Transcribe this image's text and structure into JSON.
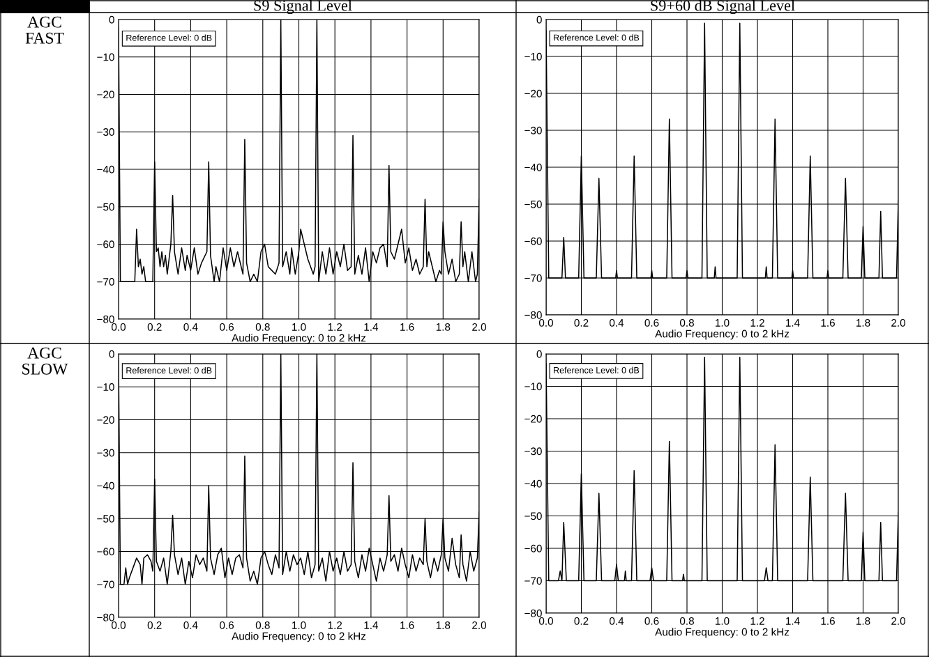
{
  "chart_data": [
    {
      "type": "line",
      "title": "S9 Signal Level",
      "xlabel": "Audio Frequency: 0 to 2 kHz",
      "annotations": [
        "Reference Level: 0 dB",
        "AGC FAST"
      ],
      "xlim": [
        0,
        2
      ],
      "ylim": [
        -80,
        0
      ],
      "xticks": [
        {
          "value": 0,
          "label": "0.0"
        },
        {
          "value": 0.2,
          "label": "0.2"
        },
        {
          "value": 0.4,
          "label": "0.4"
        },
        {
          "value": 0.6,
          "label": "0.6"
        },
        {
          "value": 0.8,
          "label": "0.8"
        },
        {
          "value": 1,
          "label": "1.0"
        },
        {
          "value": 1.2,
          "label": "1.2"
        },
        {
          "value": 1.4,
          "label": "1.4"
        },
        {
          "value": 1.6,
          "label": "1.6"
        },
        {
          "value": 1.8,
          "label": "1.8"
        },
        {
          "value": 2,
          "label": "2.0"
        }
      ],
      "yticks": [
        -80,
        -70,
        -60,
        -50,
        -40,
        -30,
        -20,
        -10,
        0
      ],
      "grid": true,
      "legend": false,
      "series": [
        {
          "color": "#000000",
          "x": [
            0.0,
            0.01,
            0.09,
            0.1,
            0.11,
            0.12,
            0.13,
            0.14,
            0.15,
            0.19,
            0.2,
            0.21,
            0.22,
            0.23,
            0.24,
            0.25,
            0.26,
            0.27,
            0.29,
            0.3,
            0.31,
            0.33,
            0.35,
            0.37,
            0.38,
            0.4,
            0.42,
            0.44,
            0.46,
            0.49,
            0.5,
            0.51,
            0.53,
            0.54,
            0.56,
            0.58,
            0.6,
            0.62,
            0.64,
            0.66,
            0.69,
            0.7,
            0.71,
            0.73,
            0.75,
            0.77,
            0.79,
            0.81,
            0.83,
            0.85,
            0.87,
            0.89,
            0.9,
            0.91,
            0.93,
            0.95,
            0.96,
            0.98,
            1.0,
            1.01,
            1.03,
            1.05,
            1.08,
            1.09,
            1.1,
            1.11,
            1.13,
            1.15,
            1.17,
            1.19,
            1.21,
            1.23,
            1.25,
            1.27,
            1.29,
            1.3,
            1.31,
            1.33,
            1.35,
            1.37,
            1.39,
            1.41,
            1.43,
            1.45,
            1.47,
            1.49,
            1.5,
            1.51,
            1.53,
            1.55,
            1.57,
            1.59,
            1.61,
            1.63,
            1.65,
            1.67,
            1.69,
            1.7,
            1.71,
            1.72,
            1.74,
            1.76,
            1.78,
            1.79,
            1.8,
            1.81,
            1.83,
            1.85,
            1.87,
            1.89,
            1.9,
            1.91,
            1.92,
            1.94,
            1.96,
            1.98,
            1.99,
            2.0
          ],
          "values": [
            -2,
            -70,
            -70,
            -56,
            -66,
            -64,
            -68,
            -66,
            -70,
            -70,
            -38,
            -62,
            -61,
            -66,
            -62,
            -66,
            -63,
            -68,
            -60,
            -47,
            -62,
            -68,
            -61,
            -67,
            -63,
            -67,
            -61,
            -68,
            -65,
            -62,
            -38,
            -63,
            -70,
            -66,
            -70,
            -61,
            -67,
            -61,
            -66,
            -62,
            -68,
            -32,
            -65,
            -70,
            -68,
            -70,
            -62,
            -60,
            -66,
            -67,
            -68,
            -65,
            0,
            -66,
            -62,
            -68,
            -61,
            -68,
            -62,
            -56,
            -60,
            -64,
            -68,
            -66,
            0,
            -70,
            -62,
            -68,
            -61,
            -68,
            -62,
            -66,
            -60,
            -67,
            -66,
            -31,
            -68,
            -63,
            -68,
            -61,
            -70,
            -62,
            -65,
            -61,
            -60,
            -66,
            -39,
            -62,
            -64,
            -60,
            -56,
            -65,
            -61,
            -67,
            -64,
            -68,
            -66,
            -48,
            -66,
            -62,
            -66,
            -70,
            -67,
            -68,
            -54,
            -62,
            -68,
            -64,
            -70,
            -68,
            -54,
            -66,
            -62,
            -70,
            -62,
            -70,
            -68,
            -48
          ]
        }
      ]
    },
    {
      "type": "line",
      "title": "S9+60 dB Signal Level",
      "xlabel": "Audio Frequency: 0 to 2 kHz",
      "annotations": [
        "Reference Level: 0 dB"
      ],
      "xlim": [
        0,
        2
      ],
      "ylim": [
        -80,
        0
      ],
      "xticks": [
        {
          "value": 0,
          "label": "0.0"
        },
        {
          "value": 0.2,
          "label": "0.2"
        },
        {
          "value": 0.4,
          "label": "0.4"
        },
        {
          "value": 0.6,
          "label": "0.6"
        },
        {
          "value": 0.8,
          "label": "0.8"
        },
        {
          "value": 1,
          "label": "1.0"
        },
        {
          "value": 1.2,
          "label": "1.2"
        },
        {
          "value": 1.4,
          "label": "1.4"
        },
        {
          "value": 1.6,
          "label": "1.6"
        },
        {
          "value": 1.8,
          "label": "1.8"
        },
        {
          "value": 2,
          "label": "2.0"
        }
      ],
      "yticks": [
        -80,
        -70,
        -60,
        -50,
        -40,
        -30,
        -20,
        -10,
        0
      ],
      "grid": true,
      "legend": false,
      "series": [
        {
          "color": "#000000",
          "x": [
            0.0,
            0.015,
            0.09,
            0.1,
            0.11,
            0.185,
            0.2,
            0.215,
            0.285,
            0.3,
            0.315,
            0.395,
            0.4,
            0.405,
            0.485,
            0.5,
            0.515,
            0.595,
            0.6,
            0.605,
            0.685,
            0.7,
            0.715,
            0.795,
            0.8,
            0.805,
            0.885,
            0.9,
            0.915,
            0.955,
            0.96,
            0.965,
            1.085,
            1.1,
            1.115,
            1.245,
            1.25,
            1.255,
            1.285,
            1.3,
            1.315,
            1.395,
            1.4,
            1.405,
            1.485,
            1.5,
            1.515,
            1.595,
            1.6,
            1.605,
            1.685,
            1.7,
            1.715,
            1.79,
            1.8,
            1.81,
            1.89,
            1.9,
            1.91,
            1.99,
            2.0
          ],
          "values": [
            -3,
            -70,
            -70,
            -59,
            -70,
            -70,
            -37,
            -70,
            -70,
            -43,
            -70,
            -70,
            -68,
            -70,
            -70,
            -37,
            -70,
            -70,
            -68,
            -70,
            -70,
            -27,
            -70,
            -70,
            -68,
            -70,
            -70,
            -1,
            -70,
            -70,
            -67,
            -70,
            -70,
            -1,
            -70,
            -70,
            -67,
            -70,
            -70,
            -27,
            -70,
            -70,
            -68,
            -70,
            -70,
            -37,
            -70,
            -70,
            -68,
            -70,
            -70,
            -43,
            -70,
            -70,
            -56,
            -70,
            -70,
            -52,
            -70,
            -70,
            -49
          ]
        }
      ]
    },
    {
      "type": "line",
      "xlabel": "Audio Frequency: 0 to 2 kHz",
      "annotations": [
        "Reference Level: 0 dB",
        "AGC SLOW"
      ],
      "xlim": [
        0,
        2
      ],
      "ylim": [
        -80,
        0
      ],
      "xticks": [
        {
          "value": 0,
          "label": "0.0"
        },
        {
          "value": 0.2,
          "label": "0.2"
        },
        {
          "value": 0.4,
          "label": "0.4"
        },
        {
          "value": 0.6,
          "label": "0.6"
        },
        {
          "value": 0.8,
          "label": "0.8"
        },
        {
          "value": 1,
          "label": "1.0"
        },
        {
          "value": 1.2,
          "label": "1.2"
        },
        {
          "value": 1.4,
          "label": "1.4"
        },
        {
          "value": 1.6,
          "label": "1.6"
        },
        {
          "value": 1.8,
          "label": "1.8"
        },
        {
          "value": 2,
          "label": "2.0"
        }
      ],
      "yticks": [
        -80,
        -70,
        -60,
        -50,
        -40,
        -30,
        -20,
        -10,
        0
      ],
      "grid": true,
      "legend": false,
      "series": [
        {
          "color": "#000000",
          "x": [
            0.0,
            0.01,
            0.03,
            0.04,
            0.05,
            0.06,
            0.08,
            0.1,
            0.12,
            0.13,
            0.14,
            0.16,
            0.18,
            0.19,
            0.2,
            0.21,
            0.23,
            0.25,
            0.27,
            0.29,
            0.3,
            0.31,
            0.33,
            0.35,
            0.37,
            0.39,
            0.41,
            0.43,
            0.45,
            0.47,
            0.49,
            0.5,
            0.51,
            0.53,
            0.55,
            0.57,
            0.59,
            0.61,
            0.63,
            0.65,
            0.67,
            0.69,
            0.7,
            0.71,
            0.73,
            0.75,
            0.77,
            0.79,
            0.81,
            0.83,
            0.85,
            0.87,
            0.89,
            0.9,
            0.91,
            0.93,
            0.95,
            0.97,
            0.99,
            1.01,
            1.03,
            1.05,
            1.07,
            1.09,
            1.1,
            1.11,
            1.13,
            1.15,
            1.17,
            1.19,
            1.21,
            1.23,
            1.25,
            1.27,
            1.29,
            1.3,
            1.31,
            1.33,
            1.35,
            1.37,
            1.39,
            1.41,
            1.43,
            1.45,
            1.47,
            1.49,
            1.5,
            1.51,
            1.53,
            1.55,
            1.57,
            1.59,
            1.61,
            1.63,
            1.65,
            1.67,
            1.69,
            1.7,
            1.71,
            1.73,
            1.75,
            1.77,
            1.79,
            1.8,
            1.81,
            1.83,
            1.85,
            1.87,
            1.89,
            1.9,
            1.91,
            1.93,
            1.95,
            1.97,
            1.99,
            2.0
          ],
          "values": [
            -2,
            -70,
            -70,
            -65,
            -70,
            -68,
            -65,
            -62,
            -64,
            -70,
            -62,
            -61,
            -63,
            -66,
            -38,
            -63,
            -66,
            -62,
            -70,
            -60,
            -49,
            -61,
            -67,
            -62,
            -70,
            -63,
            -68,
            -61,
            -64,
            -62,
            -66,
            -40,
            -62,
            -67,
            -61,
            -59,
            -68,
            -62,
            -67,
            -62,
            -61,
            -65,
            -31,
            -62,
            -69,
            -66,
            -70,
            -62,
            -60,
            -64,
            -67,
            -61,
            -65,
            0,
            -67,
            -60,
            -66,
            -61,
            -64,
            -62,
            -67,
            -60,
            -68,
            -64,
            0,
            -66,
            -62,
            -69,
            -60,
            -66,
            -62,
            -67,
            -60,
            -66,
            -64,
            -33,
            -63,
            -68,
            -61,
            -66,
            -59,
            -64,
            -69,
            -62,
            -66,
            -61,
            -43,
            -63,
            -61,
            -66,
            -59,
            -64,
            -68,
            -61,
            -66,
            -62,
            -64,
            -50,
            -63,
            -68,
            -62,
            -66,
            -61,
            -50,
            -62,
            -66,
            -56,
            -64,
            -68,
            -55,
            -64,
            -69,
            -60,
            -66,
            -62,
            -48
          ]
        }
      ]
    },
    {
      "type": "line",
      "xlabel": "Audio Frequency: 0 to 2 kHz",
      "annotations": [
        "Reference Level: 0 dB"
      ],
      "xlim": [
        0,
        2
      ],
      "ylim": [
        -80,
        0
      ],
      "xticks": [
        {
          "value": 0,
          "label": "0.0"
        },
        {
          "value": 0.2,
          "label": "0.2"
        },
        {
          "value": 0.4,
          "label": "0.4"
        },
        {
          "value": 0.6,
          "label": "0.6"
        },
        {
          "value": 0.8,
          "label": "0.8"
        },
        {
          "value": 1,
          "label": "1.0"
        },
        {
          "value": 1.2,
          "label": "1.2"
        },
        {
          "value": 1.4,
          "label": "1.4"
        },
        {
          "value": 1.6,
          "label": "1.6"
        },
        {
          "value": 1.8,
          "label": "1.8"
        },
        {
          "value": 2,
          "label": "2.0"
        }
      ],
      "yticks": [
        -80,
        -70,
        -60,
        -50,
        -40,
        -30,
        -20,
        -10,
        0
      ],
      "grid": true,
      "legend": false,
      "series": [
        {
          "color": "#000000",
          "x": [
            0.0,
            0.015,
            0.07,
            0.08,
            0.09,
            0.1,
            0.115,
            0.185,
            0.2,
            0.215,
            0.285,
            0.3,
            0.315,
            0.39,
            0.4,
            0.41,
            0.445,
            0.45,
            0.455,
            0.485,
            0.5,
            0.515,
            0.59,
            0.6,
            0.61,
            0.685,
            0.7,
            0.715,
            0.775,
            0.78,
            0.785,
            0.885,
            0.9,
            0.915,
            1.085,
            1.1,
            1.115,
            1.24,
            1.25,
            1.26,
            1.285,
            1.3,
            1.315,
            1.485,
            1.5,
            1.515,
            1.685,
            1.7,
            1.715,
            1.79,
            1.8,
            1.81,
            1.89,
            1.9,
            1.91,
            1.99,
            2.0
          ],
          "values": [
            -3,
            -70,
            -70,
            -67,
            -70,
            -52,
            -70,
            -70,
            -37,
            -70,
            -70,
            -43,
            -70,
            -70,
            -65,
            -70,
            -70,
            -67,
            -70,
            -70,
            -36,
            -70,
            -70,
            -66,
            -70,
            -70,
            -27,
            -70,
            -70,
            -68,
            -70,
            -70,
            -1,
            -70,
            -70,
            -1,
            -70,
            -70,
            -66,
            -70,
            -70,
            -28,
            -70,
            -70,
            -38,
            -70,
            -70,
            -43,
            -70,
            -70,
            -55,
            -70,
            -70,
            -52,
            -70,
            -70,
            -49
          ]
        }
      ]
    }
  ]
}
